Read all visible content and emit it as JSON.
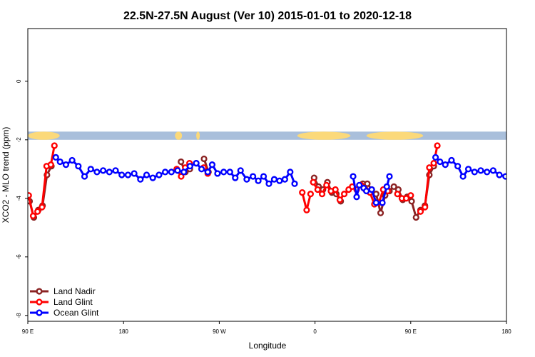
{
  "chart_data": {
    "type": "line",
    "title": "22.5N-27.5N August (Ver 10)   2015-01-01 to 2020-12-18",
    "xlabel": "Longitude",
    "ylabel": "XCO2 - MLO trend (ppm)",
    "xlim": [
      -90,
      180
    ],
    "ylim": [
      -8.2,
      1.8
    ],
    "x_ticks": [
      {
        "value": -90,
        "label": "90 E"
      },
      {
        "value": -36,
        "label": "180"
      },
      {
        "value": 18,
        "label": "90 W"
      },
      {
        "value": 72,
        "label": "0"
      },
      {
        "value": 126,
        "label": "90 E"
      },
      {
        "value": 180,
        "label": "180"
      }
    ],
    "y_ticks": [
      {
        "value": 0,
        "label": "0"
      },
      {
        "value": -2,
        "label": "-2"
      },
      {
        "value": -4,
        "label": "-4"
      },
      {
        "value": -6,
        "label": "-6"
      },
      {
        "value": -8,
        "label": "-8"
      }
    ],
    "legend_position": "bottom-left",
    "land_ocean_band": {
      "y_range": [
        -2.0,
        -1.72
      ],
      "ocean_color": "#a9bfdb",
      "land_color": "#fbd97a",
      "land_segments": [
        [
          -90,
          -72
        ],
        [
          -7,
          -3
        ],
        [
          5,
          7
        ],
        [
          62,
          92
        ],
        [
          101,
          133
        ]
      ]
    },
    "series": [
      {
        "name": "Land Nadir",
        "color": "#8b2323",
        "segments": [
          [
            [
              -89,
              -4.1
            ],
            [
              -86.6,
              -4.65
            ],
            [
              -84.1,
              -4.4
            ],
            [
              -81.7,
              -4.25
            ],
            [
              -79.2,
              -3.2
            ],
            [
              -76.7,
              -2.9
            ]
          ],
          [
            [
              -3.6,
              -2.75
            ],
            [
              -1.1,
              -3.1
            ],
            [
              1.4,
              -3.0
            ]
          ],
          [
            [
              9.4,
              -2.65
            ],
            [
              11.9,
              -3.1
            ]
          ],
          [
            [
              71.5,
              -3.3
            ],
            [
              74.0,
              -3.6
            ],
            [
              76.5,
              -3.7
            ],
            [
              79.0,
              -3.45
            ],
            [
              81.5,
              -3.8
            ],
            [
              84.0,
              -3.85
            ],
            [
              86.5,
              -4.1
            ]
          ],
          [
            [
              99.0,
              -3.5
            ],
            [
              101.5,
              -3.5
            ],
            [
              104.0,
              -3.7
            ],
            [
              106.5,
              -3.85
            ],
            [
              109.0,
              -4.5
            ],
            [
              111.5,
              -3.9
            ]
          ],
          [
            [
              111.5,
              -3.9
            ],
            [
              114.0,
              -3.75
            ],
            [
              116.5,
              -3.6
            ],
            [
              119.0,
              -3.7
            ],
            [
              121.5,
              -4.05
            ],
            [
              124.0,
              -3.95
            ]
          ],
          [
            [
              124.0,
              -3.95
            ],
            [
              126.5,
              -4.1
            ],
            [
              129.0,
              -4.65
            ],
            [
              131.5,
              -4.4
            ],
            [
              134.0,
              -4.25
            ],
            [
              136.5,
              -3.2
            ],
            [
              139.0,
              -2.9
            ]
          ]
        ]
      },
      {
        "name": "Land Glint",
        "color": "#ff0000",
        "segments": [
          [
            [
              -89.5,
              -3.9
            ],
            [
              -87.0,
              -4.6
            ],
            [
              -84.5,
              -4.45
            ],
            [
              -82.0,
              -4.3
            ],
            [
              -79.4,
              -2.9
            ],
            [
              -77.0,
              -2.85
            ],
            [
              -75.0,
              -2.2
            ]
          ],
          [
            [
              -6,
              -3.0
            ],
            [
              -3.5,
              -3.25
            ],
            [
              -1.2,
              -2.95
            ],
            [
              1.2,
              -2.8
            ]
          ],
          [
            [
              9.2,
              -2.95
            ],
            [
              11.5,
              -3.15
            ]
          ],
          [
            [
              64.8,
              -3.8
            ],
            [
              67.3,
              -4.4
            ],
            [
              69.5,
              -3.85
            ]
          ],
          [
            [
              71.0,
              -3.45
            ],
            [
              73.5,
              -3.7
            ],
            [
              76.0,
              -3.85
            ],
            [
              78.5,
              -3.55
            ],
            [
              81.0,
              -3.75
            ],
            [
              83.5,
              -3.7
            ],
            [
              86.0,
              -4.05
            ],
            [
              88.5,
              -3.85
            ],
            [
              91.0,
              -3.7
            ]
          ],
          [
            [
              93.0,
              -3.6
            ],
            [
              95.5,
              -3.7
            ],
            [
              98.0,
              -3.55
            ],
            [
              100.5,
              -3.7
            ],
            [
              103.0,
              -3.8
            ],
            [
              105.5,
              -4.2
            ],
            [
              108.0,
              -4.15
            ],
            [
              110.5,
              -3.7
            ],
            [
              113.0,
              -3.75
            ]
          ],
          [
            [
              118.5,
              -3.85
            ],
            [
              121.0,
              -4.0
            ],
            [
              123.5,
              -4.0
            ],
            [
              126.0,
              -3.9
            ]
          ],
          [
            [
              131.5,
              -4.45
            ],
            [
              134.0,
              -4.3
            ],
            [
              136.5,
              -2.95
            ],
            [
              139.0,
              -2.8
            ],
            [
              141.0,
              -2.2
            ]
          ]
        ]
      },
      {
        "name": "Ocean Glint",
        "color": "#0000ff",
        "segments": [
          [
            [
              -74.2,
              -2.6
            ],
            [
              -71.8,
              -2.75
            ],
            [
              -68.5,
              -2.85
            ],
            [
              -65.0,
              -2.7
            ],
            [
              -61.5,
              -2.9
            ],
            [
              -58.0,
              -3.25
            ],
            [
              -54.5,
              -3.0
            ],
            [
              -51.0,
              -3.1
            ],
            [
              -47.5,
              -3.05
            ],
            [
              -44.0,
              -3.1
            ],
            [
              -40.5,
              -3.05
            ],
            [
              -37.0,
              -3.2
            ],
            [
              -33.5,
              -3.2
            ],
            [
              -30.0,
              -3.15
            ],
            [
              -26.5,
              -3.35
            ],
            [
              -23.0,
              -3.2
            ],
            [
              -19.5,
              -3.3
            ],
            [
              -16.0,
              -3.2
            ],
            [
              -12.5,
              -3.1
            ],
            [
              -9.0,
              -3.1
            ],
            [
              -5.5,
              -3.05
            ],
            [
              -2.0,
              -3.1
            ],
            [
              1.5,
              -2.9
            ],
            [
              5.0,
              -2.8
            ]
          ],
          [
            [
              5.0,
              -2.8
            ],
            [
              8.0,
              -3.0
            ],
            [
              11.5,
              -3.1
            ],
            [
              14.0,
              -2.85
            ],
            [
              17.0,
              -3.15
            ],
            [
              20.5,
              -3.1
            ],
            [
              24.0,
              -3.1
            ],
            [
              27.0,
              -3.3
            ],
            [
              30.0,
              -3.05
            ],
            [
              33.5,
              -3.35
            ],
            [
              37.0,
              -3.25
            ],
            [
              40.0,
              -3.4
            ],
            [
              43.0,
              -3.25
            ],
            [
              46.0,
              -3.5
            ],
            [
              49.0,
              -3.35
            ],
            [
              52.0,
              -3.4
            ],
            [
              55.0,
              -3.35
            ],
            [
              58.0,
              -3.1
            ],
            [
              60.5,
              -3.5
            ]
          ],
          [
            [
              93.5,
              -3.25
            ],
            [
              95.5,
              -3.95
            ],
            [
              97.0,
              -3.55
            ],
            [
              99.5,
              -3.65
            ]
          ],
          [
            [
              101.0,
              -3.75
            ],
            [
              104.0,
              -3.7
            ],
            [
              106.5,
              -4.15
            ],
            [
              110.0,
              -4.15
            ],
            [
              112.5,
              -3.6
            ],
            [
              114.0,
              -3.25
            ]
          ],
          [
            [
              140.0,
              -2.6
            ],
            [
              142.5,
              -2.75
            ],
            [
              145.5,
              -2.85
            ],
            [
              149.0,
              -2.7
            ],
            [
              152.5,
              -2.9
            ],
            [
              155.5,
              -3.25
            ],
            [
              158.5,
              -3.0
            ],
            [
              162.0,
              -3.1
            ],
            [
              165.5,
              -3.05
            ],
            [
              169.0,
              -3.1
            ],
            [
              172.5,
              -3.05
            ],
            [
              176.0,
              -3.2
            ],
            [
              179.5,
              -3.25
            ]
          ]
        ]
      }
    ]
  }
}
